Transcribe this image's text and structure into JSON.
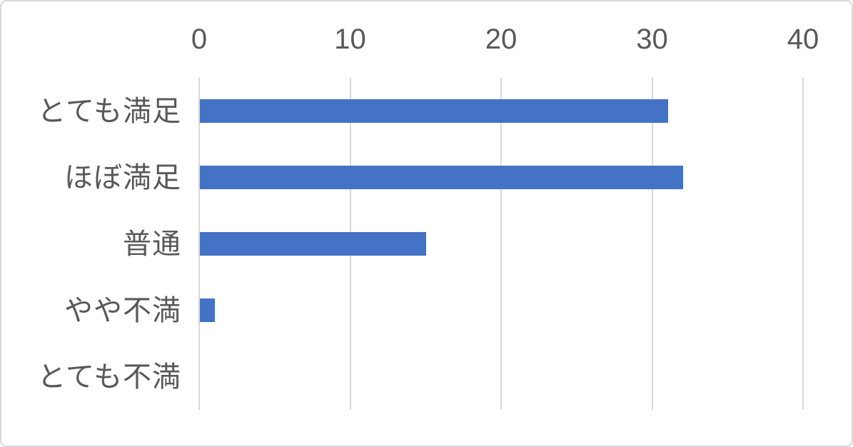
{
  "chart_data": {
    "type": "bar",
    "orientation": "horizontal",
    "title": "",
    "xlabel": "",
    "ylabel": "",
    "categories": [
      "とても満足",
      "ほぼ満足",
      "普通",
      "やや不満",
      "とても不満"
    ],
    "values": [
      31,
      32,
      15,
      1,
      0
    ],
    "xlim": [
      0,
      40
    ],
    "x_ticks": [
      0,
      10,
      20,
      30,
      40
    ],
    "x_tick_labels": [
      "0",
      "10",
      "20",
      "30",
      "40"
    ],
    "tick_position": "top",
    "grid": "vertical-only",
    "legend": "none",
    "colors": {
      "bar": "#4472C4",
      "gridline": "#D9D9D9",
      "tick_text": "#595959",
      "category_text": "#595959",
      "frame_border": "#D9D9D9",
      "background": "#FFFFFF"
    }
  }
}
